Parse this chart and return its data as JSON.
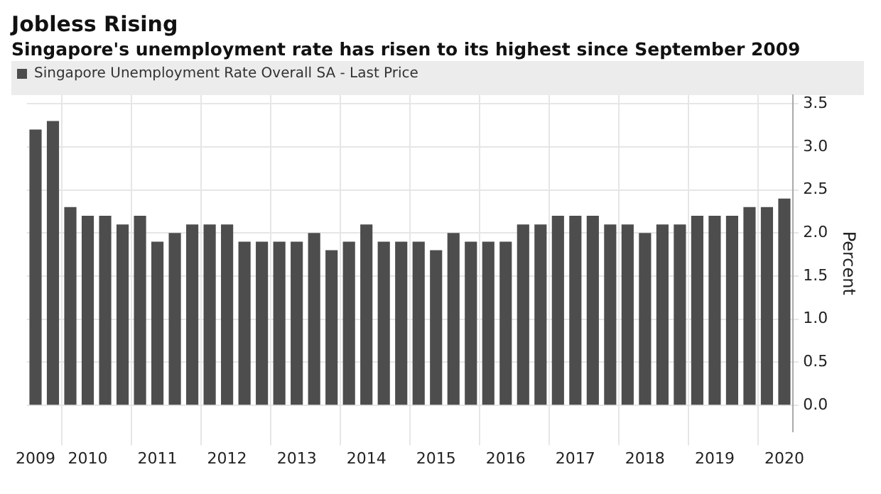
{
  "chart_data": {
    "type": "bar",
    "title": "Jobless Rising",
    "subtitle": "Singapore's unemployment rate has risen to its highest since September 2009",
    "ylabel": "Percent",
    "categories": [
      "2009",
      null,
      null,
      "2010",
      null,
      null,
      null,
      "2011",
      null,
      null,
      null,
      "2012",
      null,
      null,
      null,
      "2013",
      null,
      null,
      null,
      "2014",
      null,
      null,
      null,
      "2015",
      null,
      null,
      null,
      "2016",
      null,
      null,
      null,
      "2017",
      null,
      null,
      null,
      "2018",
      null,
      null,
      null,
      "2019",
      null,
      null,
      null,
      "2020"
    ],
    "series": [
      {
        "name": "Singapore Unemployment Rate Overall SA - Last Price",
        "color": "#4d4d4d",
        "values": [
          3.2,
          3.3,
          2.3,
          2.2,
          2.2,
          2.1,
          2.2,
          1.9,
          2.0,
          2.1,
          2.1,
          2.1,
          1.9,
          1.9,
          1.9,
          1.9,
          2.0,
          1.8,
          1.9,
          2.1,
          1.9,
          1.9,
          1.9,
          1.8,
          2.0,
          1.9,
          1.9,
          1.9,
          2.1,
          2.1,
          2.2,
          2.2,
          2.2,
          2.1,
          2.1,
          2.0,
          2.1,
          2.1,
          2.2,
          2.2,
          2.2,
          2.3,
          2.3,
          2.4
        ]
      }
    ],
    "ylim": [
      -0.3,
      3.6
    ],
    "yticks": [
      {
        "value": 0,
        "label": "0.0"
      },
      {
        "value": 0.5,
        "label": "0.5"
      },
      {
        "value": 1,
        "label": "1.0"
      },
      {
        "value": 1.5,
        "label": "1.5"
      },
      {
        "value": 2,
        "label": "2.0"
      },
      {
        "value": 2.5,
        "label": "2.5"
      },
      {
        "value": 3,
        "label": "3.0"
      },
      {
        "value": 3.5,
        "label": "3.5"
      }
    ],
    "grid": true,
    "legend": "top left"
  }
}
